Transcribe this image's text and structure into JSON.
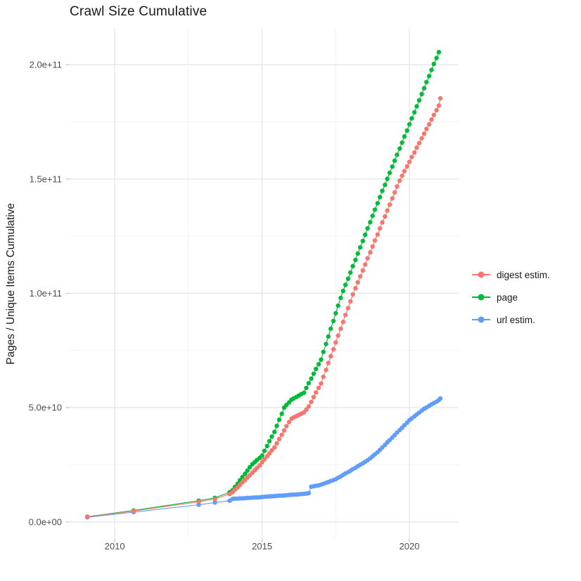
{
  "chart_data": {
    "type": "scatter",
    "title": "Crawl Size Cumulative",
    "xlabel": "",
    "ylabel": "Pages / Unique Items Cumulative",
    "grid": true,
    "legend_position": "right",
    "value_unit_note": "values in billions (1e9) of pages/items",
    "x_domain": [
      2008.47,
      2021.67
    ],
    "y_domain_e9": [
      -7.4,
      216
    ],
    "x_major_ticks": [
      {
        "value": 2010,
        "label": "2010"
      },
      {
        "value": 2015,
        "label": "2015"
      },
      {
        "value": 2020,
        "label": "2020"
      }
    ],
    "x_minor_ticks": [
      2012.5,
      2017.5
    ],
    "y_major_ticks": [
      {
        "value": 0,
        "label": "0.0e+00"
      },
      {
        "value": 50,
        "label": "5.0e+10"
      },
      {
        "value": 100,
        "label": "1.0e+11"
      },
      {
        "value": 150,
        "label": "1.5e+11"
      },
      {
        "value": 200,
        "label": "2.0e+11"
      }
    ],
    "y_minor_ticks": [
      25,
      75,
      125,
      175
    ],
    "draw_order": [
      1,
      2,
      0
    ],
    "series": [
      {
        "name": "digest estim.",
        "color": "#F8766D",
        "points": [
          [
            2009.07,
            2.2
          ],
          [
            2010.64,
            4.8
          ],
          [
            2012.85,
            8.8
          ],
          [
            2013.4,
            10.0
          ],
          [
            2013.9,
            12.2
          ],
          [
            2014.0,
            13.0
          ],
          [
            2014.08,
            14.1
          ],
          [
            2014.17,
            15.1
          ],
          [
            2014.25,
            16.2
          ],
          [
            2014.33,
            17.3
          ],
          [
            2014.42,
            18.3
          ],
          [
            2014.5,
            19.4
          ],
          [
            2014.58,
            20.4
          ],
          [
            2014.67,
            21.5
          ],
          [
            2014.75,
            22.6
          ],
          [
            2014.83,
            23.6
          ],
          [
            2014.92,
            24.7
          ],
          [
            2015.0,
            26.1
          ],
          [
            2015.08,
            27.4
          ],
          [
            2015.17,
            28.7
          ],
          [
            2015.25,
            30.0
          ],
          [
            2015.33,
            31.3
          ],
          [
            2015.42,
            32.6
          ],
          [
            2015.5,
            34.4
          ],
          [
            2015.58,
            36.3
          ],
          [
            2015.67,
            38.1
          ],
          [
            2015.75,
            40.0
          ],
          [
            2015.83,
            41.9
          ],
          [
            2015.92,
            43.7
          ],
          [
            2016.0,
            45.2
          ],
          [
            2016.08,
            45.8
          ],
          [
            2016.17,
            46.3
          ],
          [
            2016.25,
            46.8
          ],
          [
            2016.33,
            47.3
          ],
          [
            2016.42,
            47.9
          ],
          [
            2016.5,
            49.1
          ],
          [
            2016.58,
            50.5
          ],
          [
            2016.67,
            52.5
          ],
          [
            2016.75,
            54.6
          ],
          [
            2016.83,
            56.6
          ],
          [
            2016.92,
            58.6
          ],
          [
            2017.0,
            60.5
          ],
          [
            2017.08,
            63.5
          ],
          [
            2017.17,
            66.5
          ],
          [
            2017.25,
            69.5
          ],
          [
            2017.33,
            72.5
          ],
          [
            2017.42,
            75.5
          ],
          [
            2017.5,
            78.5
          ],
          [
            2017.58,
            81.5
          ],
          [
            2017.67,
            84.5
          ],
          [
            2017.75,
            87.5
          ],
          [
            2017.83,
            90.5
          ],
          [
            2017.92,
            93.5
          ],
          [
            2018.0,
            96.5
          ],
          [
            2018.08,
            99.5
          ],
          [
            2018.17,
            102.2
          ],
          [
            2018.25,
            104.8
          ],
          [
            2018.33,
            107.4
          ],
          [
            2018.42,
            110.0
          ],
          [
            2018.5,
            112.6
          ],
          [
            2018.58,
            115.3
          ],
          [
            2018.67,
            117.9
          ],
          [
            2018.75,
            120.5
          ],
          [
            2018.83,
            123.1
          ],
          [
            2018.92,
            125.7
          ],
          [
            2019.0,
            128.4
          ],
          [
            2019.08,
            131.0
          ],
          [
            2019.17,
            133.6
          ],
          [
            2019.25,
            136.2
          ],
          [
            2019.33,
            138.8
          ],
          [
            2019.42,
            141.5
          ],
          [
            2019.5,
            144.1
          ],
          [
            2019.58,
            146.7
          ],
          [
            2019.67,
            149.3
          ],
          [
            2019.75,
            151.4
          ],
          [
            2019.83,
            153.4
          ],
          [
            2019.92,
            155.5
          ],
          [
            2020.0,
            157.5
          ],
          [
            2020.08,
            159.6
          ],
          [
            2020.17,
            161.6
          ],
          [
            2020.25,
            163.7
          ],
          [
            2020.33,
            165.7
          ],
          [
            2020.42,
            167.8
          ],
          [
            2020.5,
            169.8
          ],
          [
            2020.58,
            171.9
          ],
          [
            2020.67,
            173.9
          ],
          [
            2020.75,
            176.0
          ],
          [
            2020.83,
            178.0
          ],
          [
            2020.92,
            180.1
          ],
          [
            2021.0,
            182.1
          ],
          [
            2021.05,
            185.3
          ]
        ]
      },
      {
        "name": "page",
        "color": "#00BA38",
        "points": [
          [
            2009.07,
            2.3
          ],
          [
            2010.64,
            5.0
          ],
          [
            2012.85,
            9.3
          ],
          [
            2013.4,
            10.5
          ],
          [
            2013.9,
            13.0
          ],
          [
            2014.0,
            13.9
          ],
          [
            2014.08,
            15.3
          ],
          [
            2014.17,
            16.7
          ],
          [
            2014.25,
            18.2
          ],
          [
            2014.33,
            19.6
          ],
          [
            2014.42,
            21.0
          ],
          [
            2014.5,
            22.4
          ],
          [
            2014.58,
            23.9
          ],
          [
            2014.67,
            25.2
          ],
          [
            2014.75,
            26.1
          ],
          [
            2014.83,
            27.1
          ],
          [
            2014.92,
            28.0
          ],
          [
            2015.0,
            29.0
          ],
          [
            2015.08,
            31.1
          ],
          [
            2015.17,
            33.2
          ],
          [
            2015.25,
            35.3
          ],
          [
            2015.33,
            37.3
          ],
          [
            2015.42,
            39.4
          ],
          [
            2015.5,
            42.0
          ],
          [
            2015.58,
            44.7
          ],
          [
            2015.67,
            47.3
          ],
          [
            2015.75,
            50.0
          ],
          [
            2015.83,
            51.2
          ],
          [
            2015.92,
            52.3
          ],
          [
            2016.0,
            53.5
          ],
          [
            2016.08,
            54.1
          ],
          [
            2016.17,
            54.7
          ],
          [
            2016.25,
            55.3
          ],
          [
            2016.33,
            55.9
          ],
          [
            2016.42,
            56.5
          ],
          [
            2016.5,
            58.6
          ],
          [
            2016.58,
            60.7
          ],
          [
            2016.67,
            62.7
          ],
          [
            2016.75,
            64.8
          ],
          [
            2016.83,
            66.9
          ],
          [
            2016.92,
            69.0
          ],
          [
            2017.0,
            71.0
          ],
          [
            2017.08,
            74.4
          ],
          [
            2017.17,
            77.8
          ],
          [
            2017.25,
            81.1
          ],
          [
            2017.33,
            84.5
          ],
          [
            2017.42,
            87.9
          ],
          [
            2017.5,
            91.3
          ],
          [
            2017.58,
            94.6
          ],
          [
            2017.67,
            98.0
          ],
          [
            2017.75,
            101.0
          ],
          [
            2017.83,
            103.7
          ],
          [
            2017.92,
            106.4
          ],
          [
            2018.0,
            109.1
          ],
          [
            2018.08,
            111.9
          ],
          [
            2018.17,
            114.6
          ],
          [
            2018.25,
            117.4
          ],
          [
            2018.33,
            120.1
          ],
          [
            2018.42,
            122.9
          ],
          [
            2018.5,
            125.6
          ],
          [
            2018.58,
            128.4
          ],
          [
            2018.67,
            131.1
          ],
          [
            2018.75,
            133.9
          ],
          [
            2018.83,
            136.6
          ],
          [
            2018.92,
            139.4
          ],
          [
            2019.0,
            142.1
          ],
          [
            2019.08,
            144.8
          ],
          [
            2019.17,
            147.4
          ],
          [
            2019.25,
            150.1
          ],
          [
            2019.33,
            152.7
          ],
          [
            2019.42,
            155.4
          ],
          [
            2019.5,
            158.0
          ],
          [
            2019.58,
            160.6
          ],
          [
            2019.67,
            163.3
          ],
          [
            2019.75,
            165.9
          ],
          [
            2019.83,
            168.6
          ],
          [
            2019.92,
            171.2
          ],
          [
            2020.0,
            173.9
          ],
          [
            2020.08,
            176.5
          ],
          [
            2020.17,
            179.2
          ],
          [
            2020.25,
            181.8
          ],
          [
            2020.33,
            184.4
          ],
          [
            2020.42,
            187.1
          ],
          [
            2020.5,
            189.7
          ],
          [
            2020.58,
            192.4
          ],
          [
            2020.67,
            195.0
          ],
          [
            2020.75,
            197.7
          ],
          [
            2020.83,
            200.3
          ],
          [
            2020.92,
            202.9
          ],
          [
            2021.0,
            205.5
          ]
        ]
      },
      {
        "name": "url estim.",
        "color": "#619CFF",
        "points": [
          [
            2009.07,
            2.0
          ],
          [
            2010.64,
            4.3
          ],
          [
            2012.85,
            7.5
          ],
          [
            2013.4,
            8.5
          ],
          [
            2013.9,
            9.3
          ],
          [
            2014.0,
            10.1
          ],
          [
            2014.08,
            10.2
          ],
          [
            2014.17,
            10.2
          ],
          [
            2014.25,
            10.3
          ],
          [
            2014.33,
            10.3
          ],
          [
            2014.42,
            10.4
          ],
          [
            2014.5,
            10.5
          ],
          [
            2014.58,
            10.5
          ],
          [
            2014.67,
            10.6
          ],
          [
            2014.75,
            10.7
          ],
          [
            2014.83,
            10.7
          ],
          [
            2014.92,
            10.8
          ],
          [
            2015.0,
            10.9
          ],
          [
            2015.08,
            11.0
          ],
          [
            2015.17,
            11.1
          ],
          [
            2015.25,
            11.2
          ],
          [
            2015.33,
            11.2
          ],
          [
            2015.42,
            11.3
          ],
          [
            2015.5,
            11.4
          ],
          [
            2015.58,
            11.5
          ],
          [
            2015.67,
            11.5
          ],
          [
            2015.75,
            11.6
          ],
          [
            2015.83,
            11.7
          ],
          [
            2015.92,
            11.8
          ],
          [
            2016.0,
            11.9
          ],
          [
            2016.08,
            12.0
          ],
          [
            2016.17,
            12.0
          ],
          [
            2016.25,
            12.1
          ],
          [
            2016.33,
            12.2
          ],
          [
            2016.42,
            12.3
          ],
          [
            2016.5,
            12.4
          ],
          [
            2016.58,
            12.6
          ],
          [
            2016.67,
            15.4
          ],
          [
            2016.75,
            15.6
          ],
          [
            2016.83,
            15.8
          ],
          [
            2016.92,
            16.0
          ],
          [
            2017.0,
            16.3
          ],
          [
            2017.08,
            16.7
          ],
          [
            2017.17,
            17.1
          ],
          [
            2017.25,
            17.5
          ],
          [
            2017.33,
            17.9
          ],
          [
            2017.42,
            18.3
          ],
          [
            2017.5,
            18.7
          ],
          [
            2017.58,
            19.3
          ],
          [
            2017.67,
            19.9
          ],
          [
            2017.75,
            20.6
          ],
          [
            2017.83,
            21.2
          ],
          [
            2017.92,
            21.8
          ],
          [
            2018.0,
            22.4
          ],
          [
            2018.08,
            23.1
          ],
          [
            2018.17,
            23.7
          ],
          [
            2018.25,
            24.4
          ],
          [
            2018.33,
            25.0
          ],
          [
            2018.42,
            25.7
          ],
          [
            2018.5,
            26.3
          ],
          [
            2018.58,
            27.0
          ],
          [
            2018.67,
            27.8
          ],
          [
            2018.75,
            28.7
          ],
          [
            2018.83,
            29.6
          ],
          [
            2018.92,
            30.5
          ],
          [
            2019.0,
            31.5
          ],
          [
            2019.08,
            32.6
          ],
          [
            2019.17,
            33.7
          ],
          [
            2019.25,
            34.8
          ],
          [
            2019.33,
            35.8
          ],
          [
            2019.42,
            36.9
          ],
          [
            2019.5,
            38.0
          ],
          [
            2019.58,
            39.1
          ],
          [
            2019.67,
            40.2
          ],
          [
            2019.75,
            41.2
          ],
          [
            2019.83,
            42.3
          ],
          [
            2019.92,
            43.4
          ],
          [
            2020.0,
            44.5
          ],
          [
            2020.08,
            45.3
          ],
          [
            2020.17,
            46.2
          ],
          [
            2020.25,
            47.0
          ],
          [
            2020.33,
            47.8
          ],
          [
            2020.42,
            48.7
          ],
          [
            2020.5,
            49.5
          ],
          [
            2020.58,
            50.1
          ],
          [
            2020.67,
            50.8
          ],
          [
            2020.75,
            51.4
          ],
          [
            2020.83,
            52.0
          ],
          [
            2020.92,
            52.6
          ],
          [
            2021.0,
            53.3
          ],
          [
            2021.05,
            54.0
          ]
        ]
      }
    ],
    "style": {
      "grid_major_color": "#E7E7E7",
      "grid_minor_color": "#F2F2F2",
      "tick_mark_color": "#C4C4C4",
      "tick_label_color": "#4d4d4d",
      "panel_background": "#FFFFFF"
    }
  }
}
